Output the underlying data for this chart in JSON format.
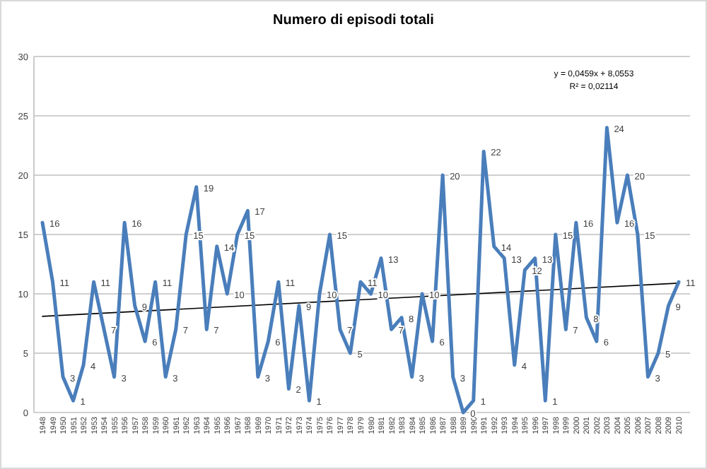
{
  "chart_data": {
    "type": "line",
    "title": "Numero di episodi totali",
    "categories": [
      "1948",
      "1949",
      "1950",
      "1951",
      "1952",
      "1953",
      "1954",
      "1955",
      "1956",
      "1957",
      "1958",
      "1959",
      "1960",
      "1961",
      "1962",
      "1963",
      "1964",
      "1965",
      "1966",
      "1967",
      "1968",
      "1969",
      "1970",
      "1971",
      "1972",
      "1973",
      "1974",
      "1975",
      "1976",
      "1977",
      "1978",
      "1979",
      "1980",
      "1981",
      "1982",
      "1983",
      "1984",
      "1985",
      "1986",
      "1987",
      "1988",
      "1989",
      "1990",
      "1991",
      "1992",
      "1993",
      "1994",
      "1995",
      "1996",
      "1997",
      "1998",
      "1999",
      "2000",
      "2001",
      "2002",
      "2003",
      "2004",
      "2005",
      "2006",
      "2007",
      "2008",
      "2009",
      "2010"
    ],
    "series": [
      {
        "color": "#4a7ebb",
        "values": [
          16,
          11,
          3,
          1,
          4,
          11,
          7,
          3,
          16,
          9,
          6,
          11,
          3,
          7,
          15,
          19,
          7,
          14,
          10,
          15,
          17,
          3,
          6,
          11,
          2,
          9,
          1,
          10,
          15,
          7,
          5,
          11,
          10,
          13,
          7,
          8,
          3,
          10,
          6,
          20,
          3,
          0,
          1,
          22,
          14,
          13,
          4,
          12,
          13,
          1,
          15,
          7,
          16,
          8,
          6,
          24,
          16,
          20,
          15,
          3,
          5,
          9,
          11
        ],
        "value_labels": [
          "16",
          "11",
          "3",
          "1",
          "4",
          "11",
          "7",
          "3",
          "16",
          "9",
          "6",
          "11",
          "3",
          "7",
          "15",
          "19",
          "7",
          "14",
          "10",
          "15",
          "17",
          "3",
          "6",
          "11",
          "2",
          "9",
          "1",
          "10",
          "15",
          "7",
          "5",
          "11",
          "10",
          "13",
          "7",
          "8",
          "3",
          "10",
          "6",
          "20",
          "3",
          "0",
          "1",
          "22",
          "14",
          "13",
          "4",
          "12",
          "13",
          "1",
          "15",
          "7",
          "16",
          "8",
          "6",
          "24",
          "16",
          "20",
          "15",
          "3",
          "5",
          "9",
          "11"
        ]
      },
      {
        "type": "line",
        "color": "#000000",
        "values": [
          8.1,
          null,
          null,
          null,
          null,
          null,
          null,
          null,
          null,
          null,
          null,
          null,
          null,
          null,
          null,
          null,
          null,
          null,
          null,
          null,
          null,
          null,
          null,
          null,
          null,
          null,
          null,
          null,
          null,
          null,
          null,
          null,
          null,
          null,
          null,
          null,
          null,
          null,
          null,
          null,
          null,
          null,
          null,
          null,
          null,
          null,
          null,
          null,
          null,
          null,
          null,
          null,
          null,
          null,
          null,
          null,
          null,
          null,
          null,
          null,
          null,
          null,
          10.9
        ]
      }
    ],
    "ylim": [
      0,
      30
    ],
    "yticks": [
      0,
      5,
      10,
      15,
      20,
      25,
      30
    ],
    "grid": "y",
    "annotations": [
      "y = 0,0459x + 8,0553",
      "R² = 0,02114"
    ]
  }
}
